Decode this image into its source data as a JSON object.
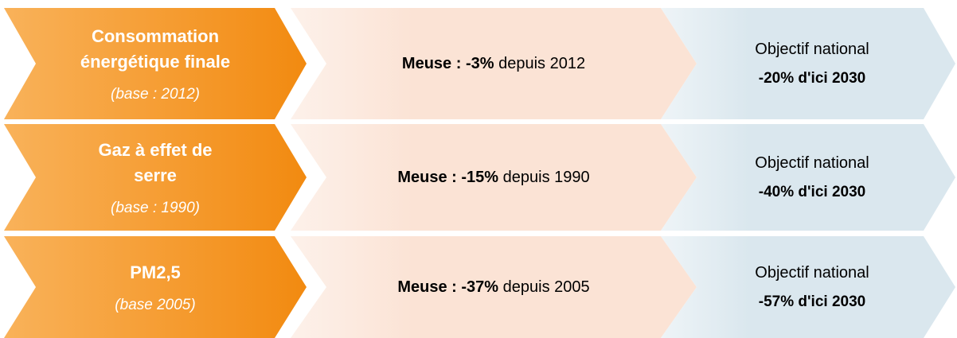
{
  "rows": [
    {
      "label_lines": [
        "Consommation",
        "énergétique finale"
      ],
      "base": "(base : 2012)",
      "meuse_label": "Meuse :",
      "meuse_value": "-3%",
      "meuse_text": "depuis 2012",
      "objective_title": "Objectif national",
      "objective_value": "-20% d'ici 2030"
    },
    {
      "label_lines": [
        "Gaz à effet de",
        "serre"
      ],
      "base": "(base : 1990)",
      "meuse_label": "Meuse :",
      "meuse_value": "-15%",
      "meuse_text": "depuis 1990",
      "objective_title": "Objectif national",
      "objective_value": "-40% d'ici 2030"
    },
    {
      "label_lines": [
        "PM2,5"
      ],
      "base": "(base 2005)",
      "meuse_label": "Meuse :",
      "meuse_value": "-37%",
      "meuse_text": "depuis 2005",
      "objective_title": "Objectif national",
      "objective_value": "-57% d'ici 2030"
    }
  ]
}
